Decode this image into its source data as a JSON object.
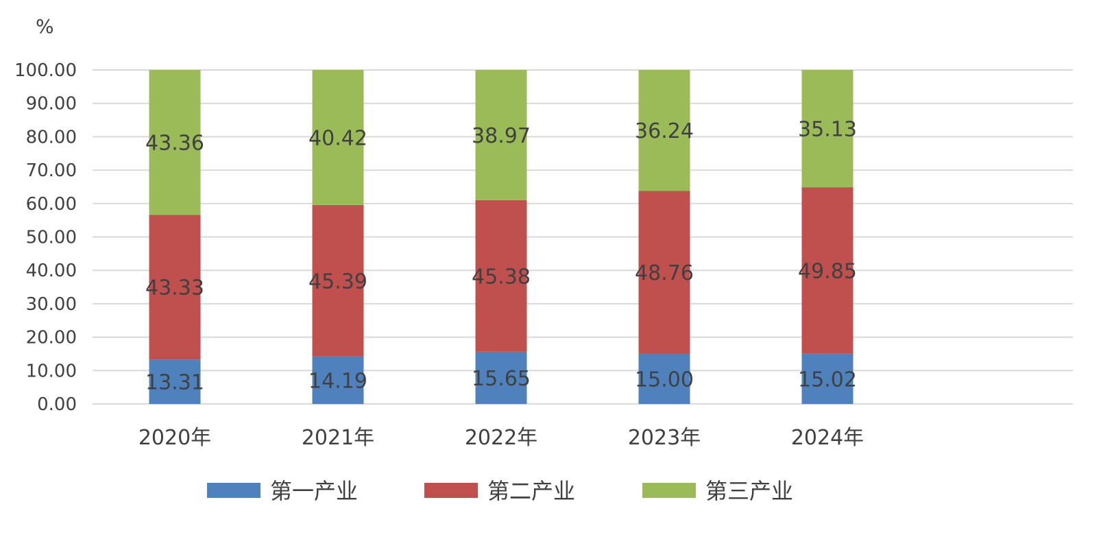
{
  "chart_data": {
    "type": "bar",
    "stacked": true,
    "unit": "%",
    "categories": [
      "2020年",
      "2021年",
      "2022年",
      "2023年",
      "2024年"
    ],
    "series": [
      {
        "name": "第一产业",
        "color": "#4F81BD",
        "values": [
          13.31,
          14.19,
          15.65,
          15.0,
          15.02
        ]
      },
      {
        "name": "第二产业",
        "color": "#C0504D",
        "values": [
          43.33,
          45.39,
          45.38,
          48.76,
          49.85
        ]
      },
      {
        "name": "第三产业",
        "color": "#9BBB59",
        "values": [
          43.36,
          40.42,
          38.97,
          36.24,
          35.13
        ]
      }
    ],
    "ylim": [
      0,
      100
    ],
    "yticks": [
      "0.00",
      "10.00",
      "20.00",
      "30.00",
      "40.00",
      "50.00",
      "60.00",
      "70.00",
      "80.00",
      "90.00",
      "100.00"
    ],
    "grid": true,
    "legend_position": "bottom",
    "gridline_color": "#D9D9D9",
    "text_color": "#404040"
  }
}
